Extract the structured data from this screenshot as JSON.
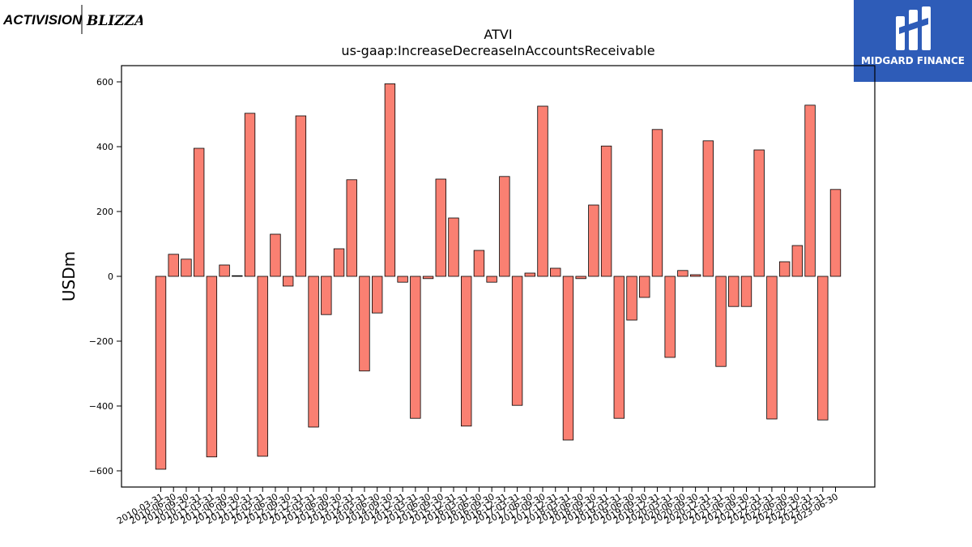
{
  "logos": {
    "left_brand_a": "ACTIVISION",
    "left_brand_b": "BLIZZARD",
    "right_brand": "MIDGARD FINANCE"
  },
  "colors": {
    "bar_fill": "#fa8072",
    "bar_stroke": "#000000",
    "axis": "#000000",
    "right_logo_bg": "#2e5cb8"
  },
  "chart_data": {
    "type": "bar",
    "title": "ATVI",
    "subtitle": "us-gaap:IncreaseDecreaseInAccountsReceivable",
    "xlabel": "",
    "ylabel": "USDm",
    "ylim": [
      -650,
      650
    ],
    "yticks": [
      -600,
      -400,
      -200,
      0,
      200,
      400,
      600
    ],
    "grid": false,
    "categories": [
      "2010-03-31",
      "2010-06-30",
      "2010-09-30",
      "2010-12-31",
      "2011-03-31",
      "2011-06-30",
      "2011-09-30",
      "2011-12-31",
      "2012-03-31",
      "2012-06-30",
      "2012-09-30",
      "2012-12-31",
      "2013-03-31",
      "2013-06-30",
      "2013-09-30",
      "2013-12-31",
      "2014-03-31",
      "2014-06-30",
      "2014-09-30",
      "2014-12-31",
      "2015-03-31",
      "2015-06-30",
      "2015-09-30",
      "2015-12-31",
      "2016-03-31",
      "2016-06-30",
      "2016-09-30",
      "2016-12-31",
      "2017-03-31",
      "2017-06-30",
      "2017-09-30",
      "2017-12-31",
      "2018-03-31",
      "2018-06-30",
      "2018-09-30",
      "2018-12-31",
      "2019-03-31",
      "2019-06-30",
      "2019-09-30",
      "2019-12-31",
      "2020-03-31",
      "2020-06-30",
      "2020-09-30",
      "2020-12-31",
      "2021-03-31",
      "2021-06-30",
      "2021-09-30",
      "2021-12-31",
      "2022-03-31",
      "2022-06-30",
      "2022-09-30",
      "2022-12-31",
      "2023-03-31",
      "2023-06-30"
    ],
    "values": [
      -595,
      68,
      53,
      395,
      -557,
      35,
      2,
      503,
      -555,
      130,
      -30,
      495,
      -465,
      -118,
      85,
      298,
      -292,
      -113,
      594,
      -18,
      -438,
      -7,
      300,
      180,
      -462,
      80,
      -18,
      308,
      -398,
      10,
      525,
      25,
      -505,
      -7,
      220,
      402,
      -438,
      -135,
      -65,
      453,
      -250,
      18,
      5,
      418,
      -278,
      -93,
      -93,
      390,
      -440,
      45,
      95,
      528,
      -443,
      268
    ]
  }
}
